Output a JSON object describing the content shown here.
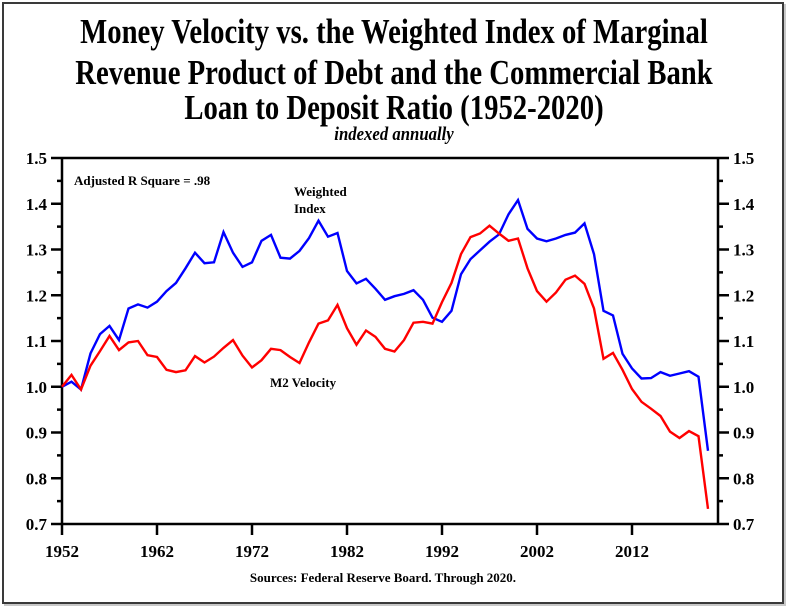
{
  "chart_data": {
    "type": "line",
    "title": "Money Velocity vs. the Weighted Index of Marginal Revenue Product of Debt and the Commercial Bank Loan to Deposit Ratio (1952-2020)",
    "title_lines": [
      "Money Velocity vs. the Weighted Index of Marginal",
      "Revenue Product of Debt and the Commercial Bank",
      "Loan to Deposit Ratio (1952-2020)"
    ],
    "subtitle": "indexed annually",
    "xlabel": "",
    "ylabel": "",
    "xlim": [
      1952,
      2021
    ],
    "ylim": [
      0.7,
      1.5
    ],
    "x_ticks": [
      1952,
      1962,
      1972,
      1982,
      1992,
      2002,
      2012
    ],
    "x_tick_labels": [
      "1952",
      "1962",
      "1972",
      "1982",
      "1992",
      "2002",
      "2012"
    ],
    "y_ticks": [
      0.7,
      0.8,
      0.9,
      1.0,
      1.1,
      1.2,
      1.3,
      1.4,
      1.5
    ],
    "y_tick_labels": [
      "0.7",
      "0.8",
      "0.9",
      "1.0",
      "1.1",
      "1.2",
      "1.3",
      "1.4",
      "1.5"
    ],
    "y_minor_step": 0.05,
    "grid": false,
    "dual_y_axis": true,
    "x": [
      1952,
      1953,
      1954,
      1955,
      1956,
      1957,
      1958,
      1959,
      1960,
      1961,
      1962,
      1963,
      1964,
      1965,
      1966,
      1967,
      1968,
      1969,
      1970,
      1971,
      1972,
      1973,
      1974,
      1975,
      1976,
      1977,
      1978,
      1979,
      1980,
      1981,
      1982,
      1983,
      1984,
      1985,
      1986,
      1987,
      1988,
      1989,
      1990,
      1991,
      1992,
      1993,
      1994,
      1995,
      1996,
      1997,
      1998,
      1999,
      2000,
      2001,
      2002,
      2003,
      2004,
      2005,
      2006,
      2007,
      2008,
      2009,
      2010,
      2011,
      2012,
      2013,
      2014,
      2015,
      2016,
      2017,
      2018,
      2019,
      2020
    ],
    "series": [
      {
        "name": "Weighted Index",
        "color": "#0000ff",
        "values": [
          1.0,
          1.011,
          0.994,
          1.073,
          1.115,
          1.133,
          1.102,
          1.171,
          1.18,
          1.173,
          1.186,
          1.209,
          1.227,
          1.259,
          1.293,
          1.27,
          1.272,
          1.338,
          1.293,
          1.262,
          1.272,
          1.319,
          1.332,
          1.282,
          1.28,
          1.297,
          1.325,
          1.363,
          1.328,
          1.336,
          1.253,
          1.226,
          1.236,
          1.214,
          1.19,
          1.198,
          1.203,
          1.211,
          1.19,
          1.151,
          1.142,
          1.166,
          1.246,
          1.279,
          1.298,
          1.317,
          1.333,
          1.377,
          1.408,
          1.345,
          1.324,
          1.318,
          1.324,
          1.332,
          1.337,
          1.357,
          1.29,
          1.166,
          1.156,
          1.072,
          1.04,
          1.018,
          1.019,
          1.032,
          1.024,
          1.029,
          1.034,
          1.022,
          0.86
        ]
      },
      {
        "name": "M2 Velocity",
        "color": "#ff0000",
        "values": [
          1.0,
          1.026,
          0.994,
          1.046,
          1.078,
          1.111,
          1.08,
          1.097,
          1.1,
          1.069,
          1.065,
          1.037,
          1.032,
          1.036,
          1.067,
          1.053,
          1.066,
          1.085,
          1.102,
          1.068,
          1.042,
          1.058,
          1.083,
          1.08,
          1.065,
          1.052,
          1.097,
          1.138,
          1.145,
          1.179,
          1.128,
          1.092,
          1.123,
          1.109,
          1.083,
          1.077,
          1.102,
          1.14,
          1.142,
          1.138,
          1.185,
          1.227,
          1.29,
          1.327,
          1.335,
          1.352,
          1.335,
          1.319,
          1.324,
          1.259,
          1.209,
          1.186,
          1.206,
          1.234,
          1.243,
          1.225,
          1.171,
          1.061,
          1.074,
          1.037,
          0.995,
          0.967,
          0.952,
          0.936,
          0.902,
          0.888,
          0.903,
          0.892,
          0.733
        ]
      }
    ],
    "annotations": {
      "r_square": "Adjusted R Square = .98",
      "weighted_label_line1": "Weighted",
      "weighted_label_line2": "Index",
      "m2_label": "M2 Velocity"
    },
    "source": "Sources: Federal Reserve Board. Through 2020."
  }
}
